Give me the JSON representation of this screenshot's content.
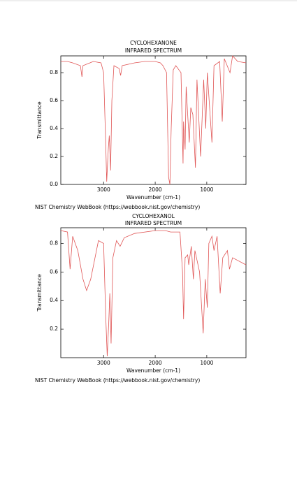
{
  "chart_data": [
    {
      "type": "line",
      "title": "CYCLOHEXANONE",
      "subtitle": "INFRARED SPECTRUM",
      "xlabel": "Wavenumber (cm-1)",
      "ylabel": "Transmittance",
      "source": "NIST Chemistry WebBook (https://webbook.nist.gov/chemistry)",
      "xlim": [
        3830,
        240
      ],
      "xticks": [
        3000,
        2000,
        1000
      ],
      "ylim": [
        0,
        0.92
      ],
      "yticks": [
        {
          "value": 0,
          "label": "0.0"
        },
        0.2,
        0.4,
        0.6,
        0.8
      ],
      "x": [
        3830,
        3700,
        3600,
        3450,
        3420,
        3400,
        3200,
        3050,
        3000,
        2960,
        2940,
        2910,
        2890,
        2865,
        2840,
        2800,
        2700,
        2670,
        2640,
        2400,
        2200,
        2000,
        1900,
        1850,
        1780,
        1740,
        1715,
        1690,
        1650,
        1600,
        1500,
        1460,
        1450,
        1420,
        1400,
        1340,
        1310,
        1270,
        1220,
        1190,
        1120,
        1060,
        1020,
        990,
        900,
        860,
        750,
        700,
        660,
        550,
        500,
        400,
        240
      ],
      "series": [
        {
          "name": "CYCLOHEXANONE",
          "color": "#e05555",
          "values": [
            0.88,
            0.88,
            0.87,
            0.85,
            0.77,
            0.85,
            0.88,
            0.87,
            0.8,
            0.3,
            0.02,
            0.25,
            0.35,
            0.1,
            0.6,
            0.85,
            0.83,
            0.78,
            0.85,
            0.87,
            0.88,
            0.88,
            0.87,
            0.85,
            0.8,
            0.05,
            0.0,
            0.4,
            0.82,
            0.85,
            0.8,
            0.15,
            0.45,
            0.25,
            0.7,
            0.3,
            0.55,
            0.5,
            0.12,
            0.75,
            0.2,
            0.75,
            0.4,
            0.8,
            0.3,
            0.85,
            0.88,
            0.45,
            0.9,
            0.8,
            0.92,
            0.88,
            0.87
          ]
        }
      ]
    },
    {
      "type": "line",
      "title": "CYCLOHEXANOL",
      "subtitle": "INFRARED SPECTRUM",
      "xlabel": "Wavenumber (cm-1)",
      "ylabel": "Transmittance",
      "source": "NIST Chemistry WebBook (https://webbook.nist.gov/chemistry)",
      "xlim": [
        3830,
        240
      ],
      "xticks": [
        3000,
        2000,
        1000
      ],
      "ylim": [
        0,
        0.91
      ],
      "yticks": [
        0.2,
        0.4,
        0.6,
        0.8
      ],
      "x": [
        3830,
        3700,
        3650,
        3600,
        3500,
        3400,
        3330,
        3250,
        3100,
        3000,
        2960,
        2930,
        2900,
        2880,
        2855,
        2820,
        2750,
        2680,
        2600,
        2400,
        2000,
        1800,
        1700,
        1600,
        1520,
        1470,
        1450,
        1420,
        1370,
        1350,
        1300,
        1260,
        1230,
        1140,
        1070,
        1030,
        990,
        960,
        900,
        860,
        800,
        740,
        690,
        600,
        560,
        500,
        240
      ],
      "series": [
        {
          "name": "CYCLOHEXANOL",
          "color": "#e05555",
          "values": [
            0.89,
            0.88,
            0.62,
            0.85,
            0.75,
            0.55,
            0.47,
            0.55,
            0.82,
            0.8,
            0.3,
            0.01,
            0.25,
            0.45,
            0.1,
            0.7,
            0.82,
            0.78,
            0.84,
            0.87,
            0.89,
            0.89,
            0.88,
            0.88,
            0.88,
            0.6,
            0.27,
            0.7,
            0.72,
            0.65,
            0.78,
            0.55,
            0.75,
            0.6,
            0.17,
            0.55,
            0.35,
            0.8,
            0.85,
            0.75,
            0.85,
            0.45,
            0.7,
            0.75,
            0.62,
            0.7,
            0.65
          ]
        }
      ]
    }
  ]
}
